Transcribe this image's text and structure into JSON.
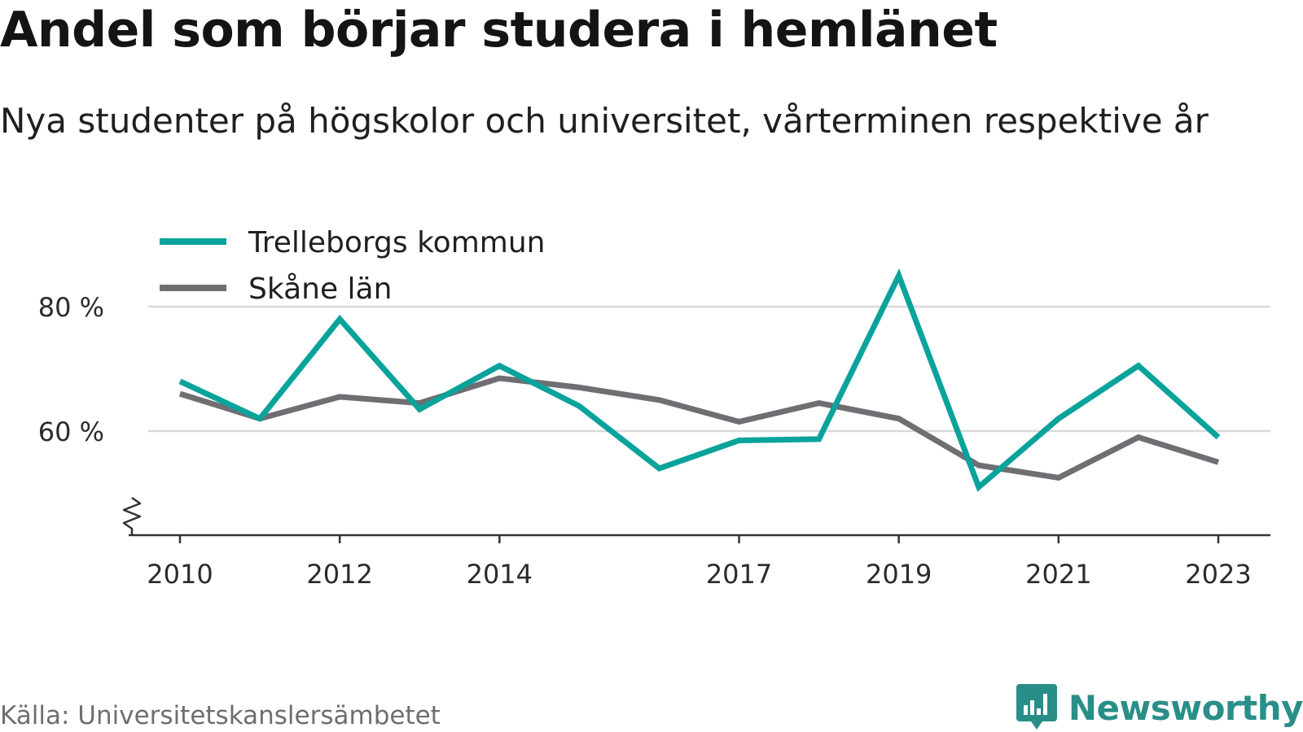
{
  "header": {
    "title": "Andel som börjar studera i hemlänet",
    "subtitle": "Nya studenter på högskolor och universitet, vårterminen respektive år"
  },
  "footer": {
    "source": "Källa: Universitetskanslersämbetet",
    "brand": "Newsworthy",
    "brand_icon": "bar-chart-speech-bubble-icon"
  },
  "colors": {
    "trelleborg": "#0aa39b",
    "skane": "#6e6e73",
    "grid": "#d9d9d9",
    "axis": "#333333",
    "brand": "#2a8e88"
  },
  "chart_data": {
    "type": "line",
    "x": [
      2010,
      2011,
      2012,
      2013,
      2014,
      2015,
      2016,
      2017,
      2018,
      2019,
      2020,
      2021,
      2022,
      2023
    ],
    "x_tick_labels": [
      "2010",
      "2012",
      "2014",
      "2017",
      "2019",
      "2021",
      "2023"
    ],
    "y_tick_labels": [
      "60 %",
      "80 %"
    ],
    "y_ticks": [
      60,
      80
    ],
    "ylim": [
      44,
      84
    ],
    "y_axis_break": true,
    "grid": true,
    "legend_position": "top-left",
    "series": [
      {
        "name": "Trelleborgs kommun",
        "values": [
          68,
          62,
          78,
          63.5,
          70.5,
          64,
          54,
          58.5,
          58.7,
          85,
          51,
          62,
          70.5,
          59
        ]
      },
      {
        "name": "Skåne län",
        "values": [
          66,
          62,
          65.5,
          64.5,
          68.5,
          67,
          65,
          61.5,
          64.5,
          62,
          54.5,
          52.5,
          59,
          55
        ]
      }
    ]
  }
}
